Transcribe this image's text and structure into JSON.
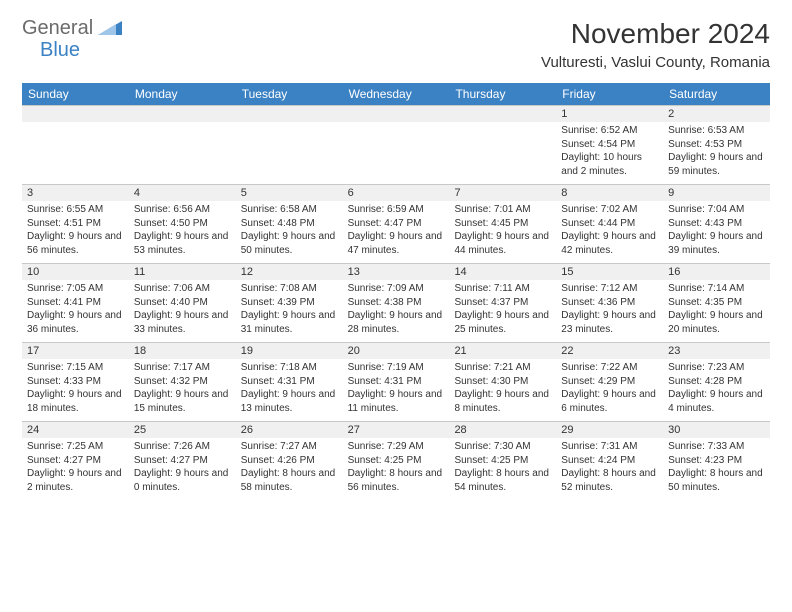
{
  "brand": {
    "word1": "General",
    "word2": "Blue"
  },
  "title": "November 2024",
  "location": "Vulturesti, Vaslui County, Romania",
  "dayNames": [
    "Sunday",
    "Monday",
    "Tuesday",
    "Wednesday",
    "Thursday",
    "Friday",
    "Saturday"
  ],
  "colors": {
    "header_bg": "#3b82c4",
    "header_text": "#ffffff",
    "numrow_bg": "#f0f0f0",
    "border": "#c8c8c8",
    "text": "#333333"
  },
  "weeks": [
    [
      {
        "n": "",
        "sr": "",
        "ss": "",
        "dl": ""
      },
      {
        "n": "",
        "sr": "",
        "ss": "",
        "dl": ""
      },
      {
        "n": "",
        "sr": "",
        "ss": "",
        "dl": ""
      },
      {
        "n": "",
        "sr": "",
        "ss": "",
        "dl": ""
      },
      {
        "n": "",
        "sr": "",
        "ss": "",
        "dl": ""
      },
      {
        "n": "1",
        "sr": "Sunrise: 6:52 AM",
        "ss": "Sunset: 4:54 PM",
        "dl": "Daylight: 10 hours and 2 minutes."
      },
      {
        "n": "2",
        "sr": "Sunrise: 6:53 AM",
        "ss": "Sunset: 4:53 PM",
        "dl": "Daylight: 9 hours and 59 minutes."
      }
    ],
    [
      {
        "n": "3",
        "sr": "Sunrise: 6:55 AM",
        "ss": "Sunset: 4:51 PM",
        "dl": "Daylight: 9 hours and 56 minutes."
      },
      {
        "n": "4",
        "sr": "Sunrise: 6:56 AM",
        "ss": "Sunset: 4:50 PM",
        "dl": "Daylight: 9 hours and 53 minutes."
      },
      {
        "n": "5",
        "sr": "Sunrise: 6:58 AM",
        "ss": "Sunset: 4:48 PM",
        "dl": "Daylight: 9 hours and 50 minutes."
      },
      {
        "n": "6",
        "sr": "Sunrise: 6:59 AM",
        "ss": "Sunset: 4:47 PM",
        "dl": "Daylight: 9 hours and 47 minutes."
      },
      {
        "n": "7",
        "sr": "Sunrise: 7:01 AM",
        "ss": "Sunset: 4:45 PM",
        "dl": "Daylight: 9 hours and 44 minutes."
      },
      {
        "n": "8",
        "sr": "Sunrise: 7:02 AM",
        "ss": "Sunset: 4:44 PM",
        "dl": "Daylight: 9 hours and 42 minutes."
      },
      {
        "n": "9",
        "sr": "Sunrise: 7:04 AM",
        "ss": "Sunset: 4:43 PM",
        "dl": "Daylight: 9 hours and 39 minutes."
      }
    ],
    [
      {
        "n": "10",
        "sr": "Sunrise: 7:05 AM",
        "ss": "Sunset: 4:41 PM",
        "dl": "Daylight: 9 hours and 36 minutes."
      },
      {
        "n": "11",
        "sr": "Sunrise: 7:06 AM",
        "ss": "Sunset: 4:40 PM",
        "dl": "Daylight: 9 hours and 33 minutes."
      },
      {
        "n": "12",
        "sr": "Sunrise: 7:08 AM",
        "ss": "Sunset: 4:39 PM",
        "dl": "Daylight: 9 hours and 31 minutes."
      },
      {
        "n": "13",
        "sr": "Sunrise: 7:09 AM",
        "ss": "Sunset: 4:38 PM",
        "dl": "Daylight: 9 hours and 28 minutes."
      },
      {
        "n": "14",
        "sr": "Sunrise: 7:11 AM",
        "ss": "Sunset: 4:37 PM",
        "dl": "Daylight: 9 hours and 25 minutes."
      },
      {
        "n": "15",
        "sr": "Sunrise: 7:12 AM",
        "ss": "Sunset: 4:36 PM",
        "dl": "Daylight: 9 hours and 23 minutes."
      },
      {
        "n": "16",
        "sr": "Sunrise: 7:14 AM",
        "ss": "Sunset: 4:35 PM",
        "dl": "Daylight: 9 hours and 20 minutes."
      }
    ],
    [
      {
        "n": "17",
        "sr": "Sunrise: 7:15 AM",
        "ss": "Sunset: 4:33 PM",
        "dl": "Daylight: 9 hours and 18 minutes."
      },
      {
        "n": "18",
        "sr": "Sunrise: 7:17 AM",
        "ss": "Sunset: 4:32 PM",
        "dl": "Daylight: 9 hours and 15 minutes."
      },
      {
        "n": "19",
        "sr": "Sunrise: 7:18 AM",
        "ss": "Sunset: 4:31 PM",
        "dl": "Daylight: 9 hours and 13 minutes."
      },
      {
        "n": "20",
        "sr": "Sunrise: 7:19 AM",
        "ss": "Sunset: 4:31 PM",
        "dl": "Daylight: 9 hours and 11 minutes."
      },
      {
        "n": "21",
        "sr": "Sunrise: 7:21 AM",
        "ss": "Sunset: 4:30 PM",
        "dl": "Daylight: 9 hours and 8 minutes."
      },
      {
        "n": "22",
        "sr": "Sunrise: 7:22 AM",
        "ss": "Sunset: 4:29 PM",
        "dl": "Daylight: 9 hours and 6 minutes."
      },
      {
        "n": "23",
        "sr": "Sunrise: 7:23 AM",
        "ss": "Sunset: 4:28 PM",
        "dl": "Daylight: 9 hours and 4 minutes."
      }
    ],
    [
      {
        "n": "24",
        "sr": "Sunrise: 7:25 AM",
        "ss": "Sunset: 4:27 PM",
        "dl": "Daylight: 9 hours and 2 minutes."
      },
      {
        "n": "25",
        "sr": "Sunrise: 7:26 AM",
        "ss": "Sunset: 4:27 PM",
        "dl": "Daylight: 9 hours and 0 minutes."
      },
      {
        "n": "26",
        "sr": "Sunrise: 7:27 AM",
        "ss": "Sunset: 4:26 PM",
        "dl": "Daylight: 8 hours and 58 minutes."
      },
      {
        "n": "27",
        "sr": "Sunrise: 7:29 AM",
        "ss": "Sunset: 4:25 PM",
        "dl": "Daylight: 8 hours and 56 minutes."
      },
      {
        "n": "28",
        "sr": "Sunrise: 7:30 AM",
        "ss": "Sunset: 4:25 PM",
        "dl": "Daylight: 8 hours and 54 minutes."
      },
      {
        "n": "29",
        "sr": "Sunrise: 7:31 AM",
        "ss": "Sunset: 4:24 PM",
        "dl": "Daylight: 8 hours and 52 minutes."
      },
      {
        "n": "30",
        "sr": "Sunrise: 7:33 AM",
        "ss": "Sunset: 4:23 PM",
        "dl": "Daylight: 8 hours and 50 minutes."
      }
    ]
  ]
}
